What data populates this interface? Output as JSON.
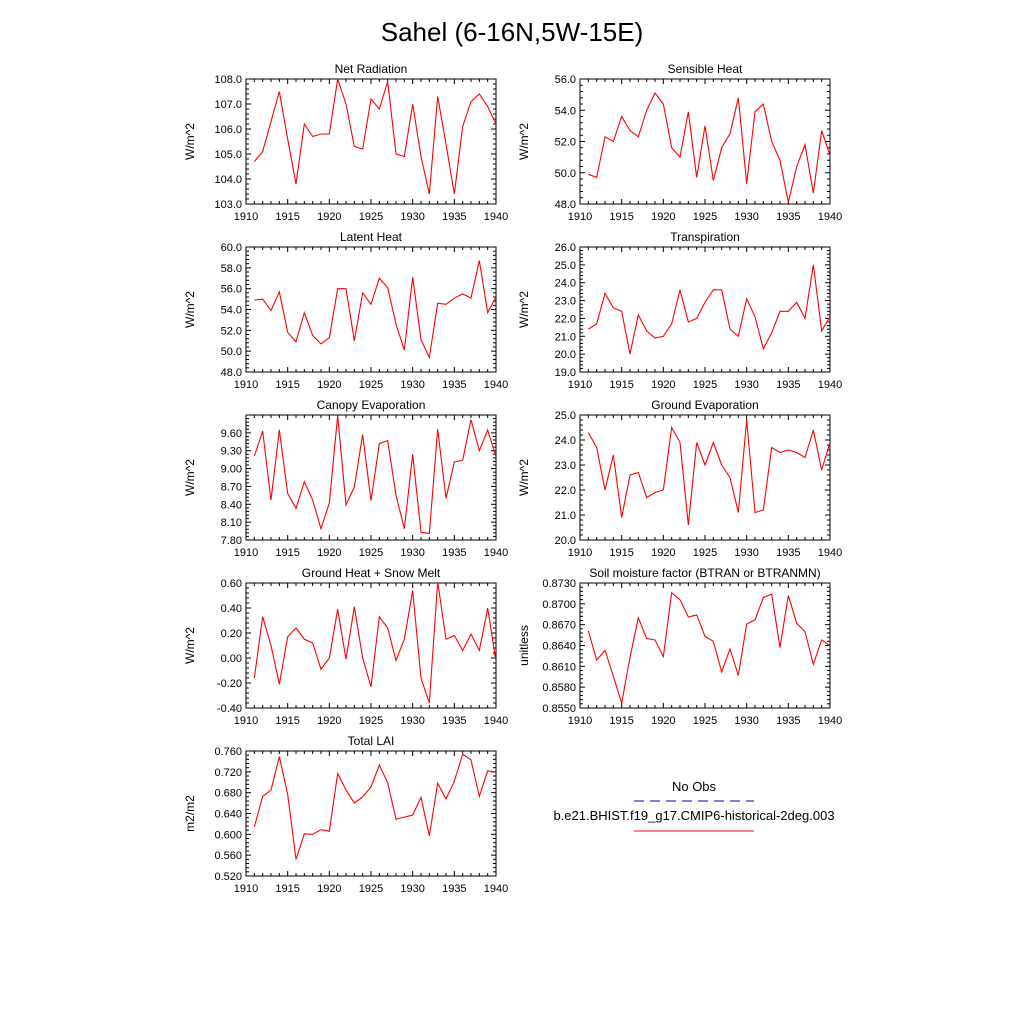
{
  "figure": {
    "title": "Sahel (6-16N,5W-15E)",
    "line_color": "#ff0000",
    "obs_color": "#0000aa",
    "legend": {
      "obs_label": "No Obs",
      "model_label": "b.e21.BHIST.f19_g17.CMIP6-historical-2deg.003"
    }
  },
  "chart_data": [
    {
      "type": "line",
      "title": "Net Radiation",
      "xlabel": "",
      "ylabel": "W/m^2",
      "xlim": [
        1910,
        1940
      ],
      "ylim": [
        103.0,
        108.0
      ],
      "x_ticks": [
        1910,
        1915,
        1920,
        1925,
        1930,
        1935,
        1940
      ],
      "y_ticks": [
        103.0,
        104.0,
        105.0,
        106.0,
        107.0,
        108.0
      ],
      "y_tick_labels": [
        "103.0",
        "104.0",
        "105.0",
        "106.0",
        "107.0",
        "108.0"
      ],
      "series": [
        {
          "x": [
            1911,
            1912,
            1913,
            1914,
            1915,
            1916,
            1917,
            1918,
            1919,
            1920,
            1921,
            1922,
            1923,
            1924,
            1925,
            1926,
            1927,
            1928,
            1929,
            1930,
            1931,
            1932,
            1933,
            1934,
            1935,
            1936,
            1937,
            1938,
            1939,
            1940
          ],
          "values": [
            104.7,
            105.1,
            106.3,
            107.5,
            105.6,
            103.8,
            106.2,
            105.7,
            105.8,
            105.8,
            108.0,
            107.0,
            105.3,
            105.2,
            107.2,
            106.8,
            107.9,
            105.0,
            104.9,
            107.0,
            104.9,
            103.4,
            107.3,
            105.4,
            103.4,
            106.1,
            107.1,
            107.4,
            106.9,
            106.2
          ]
        }
      ]
    },
    {
      "type": "line",
      "title": "Sensible Heat",
      "xlabel": "",
      "ylabel": "W/m^2",
      "xlim": [
        1910,
        1940
      ],
      "ylim": [
        48.0,
        56.0
      ],
      "x_ticks": [
        1910,
        1915,
        1920,
        1925,
        1930,
        1935,
        1940
      ],
      "y_ticks": [
        48.0,
        50.0,
        52.0,
        54.0,
        56.0
      ],
      "y_tick_labels": [
        "48.0",
        "50.0",
        "52.0",
        "54.0",
        "56.0"
      ],
      "series": [
        {
          "x": [
            1911,
            1912,
            1913,
            1914,
            1915,
            1916,
            1917,
            1918,
            1919,
            1920,
            1921,
            1922,
            1923,
            1924,
            1925,
            1926,
            1927,
            1928,
            1929,
            1930,
            1931,
            1932,
            1933,
            1934,
            1935,
            1936,
            1937,
            1938,
            1939,
            1940
          ],
          "values": [
            49.9,
            49.7,
            52.3,
            52.0,
            53.6,
            52.7,
            52.3,
            54.0,
            55.1,
            54.4,
            51.6,
            51.0,
            53.9,
            49.7,
            53.0,
            49.5,
            51.6,
            52.5,
            54.8,
            49.3,
            53.9,
            54.4,
            52.0,
            50.8,
            48.1,
            50.4,
            51.8,
            48.7,
            52.7,
            51.1
          ]
        }
      ]
    },
    {
      "type": "line",
      "title": "Latent Heat",
      "xlabel": "",
      "ylabel": "W/m^2",
      "xlim": [
        1910,
        1940
      ],
      "ylim": [
        48.0,
        60.0
      ],
      "x_ticks": [
        1910,
        1915,
        1920,
        1925,
        1930,
        1935,
        1940
      ],
      "y_ticks": [
        48.0,
        50.0,
        52.0,
        54.0,
        56.0,
        58.0,
        60.0
      ],
      "y_tick_labels": [
        "48.0",
        "50.0",
        "52.0",
        "54.0",
        "56.0",
        "58.0",
        "60.0"
      ],
      "series": [
        {
          "x": [
            1911,
            1912,
            1913,
            1914,
            1915,
            1916,
            1917,
            1918,
            1919,
            1920,
            1921,
            1922,
            1923,
            1924,
            1925,
            1926,
            1927,
            1928,
            1929,
            1930,
            1931,
            1932,
            1933,
            1934,
            1935,
            1936,
            1937,
            1938,
            1939,
            1940
          ],
          "values": [
            54.9,
            55.0,
            53.9,
            55.7,
            51.8,
            50.9,
            53.7,
            51.5,
            50.7,
            51.3,
            56.0,
            56.0,
            51.0,
            55.6,
            54.5,
            57.0,
            56.1,
            52.6,
            50.1,
            57.1,
            51.1,
            49.4,
            54.6,
            54.5,
            55.1,
            55.5,
            55.1,
            58.7,
            53.7,
            55.2
          ]
        }
      ]
    },
    {
      "type": "line",
      "title": "Transpiration",
      "xlabel": "",
      "ylabel": "W/m^2",
      "xlim": [
        1910,
        1940
      ],
      "ylim": [
        19.0,
        26.0
      ],
      "x_ticks": [
        1910,
        1915,
        1920,
        1925,
        1930,
        1935,
        1940
      ],
      "y_ticks": [
        19.0,
        20.0,
        21.0,
        22.0,
        23.0,
        24.0,
        25.0,
        26.0
      ],
      "y_tick_labels": [
        "19.0",
        "20.0",
        "21.0",
        "22.0",
        "23.0",
        "24.0",
        "25.0",
        "26.0"
      ],
      "series": [
        {
          "x": [
            1911,
            1912,
            1913,
            1914,
            1915,
            1916,
            1917,
            1918,
            1919,
            1920,
            1921,
            1922,
            1923,
            1924,
            1925,
            1926,
            1927,
            1928,
            1929,
            1930,
            1931,
            1932,
            1933,
            1934,
            1935,
            1936,
            1937,
            1938,
            1939,
            1940
          ],
          "values": [
            21.4,
            21.7,
            23.4,
            22.6,
            22.4,
            20.0,
            22.2,
            21.3,
            20.9,
            21.0,
            21.7,
            23.6,
            21.8,
            22.0,
            22.9,
            23.6,
            23.6,
            21.4,
            21.0,
            23.1,
            22.1,
            20.3,
            21.2,
            22.4,
            22.4,
            22.9,
            22.0,
            25.0,
            21.3,
            22.1
          ]
        }
      ]
    },
    {
      "type": "line",
      "title": "Canopy Evaporation",
      "xlabel": "",
      "ylabel": "W/m^2",
      "xlim": [
        1910,
        1940
      ],
      "ylim": [
        7.8,
        9.9
      ],
      "x_ticks": [
        1910,
        1915,
        1920,
        1925,
        1930,
        1935,
        1940
      ],
      "y_ticks": [
        7.8,
        8.1,
        8.4,
        8.7,
        9.0,
        9.3,
        9.6
      ],
      "y_tick_labels": [
        "7.80",
        "8.10",
        "8.40",
        "8.70",
        "9.00",
        "9.30",
        "9.60"
      ],
      "series": [
        {
          "x": [
            1911,
            1912,
            1913,
            1914,
            1915,
            1916,
            1917,
            1918,
            1919,
            1920,
            1921,
            1922,
            1923,
            1924,
            1925,
            1926,
            1927,
            1928,
            1929,
            1930,
            1931,
            1932,
            1933,
            1934,
            1935,
            1936,
            1937,
            1938,
            1939,
            1940
          ],
          "values": [
            9.21,
            9.63,
            8.47,
            9.65,
            8.58,
            8.33,
            8.78,
            8.47,
            7.99,
            8.42,
            9.89,
            8.39,
            8.69,
            9.57,
            8.46,
            9.42,
            9.47,
            8.55,
            7.99,
            9.24,
            7.93,
            7.91,
            9.66,
            8.5,
            9.11,
            9.14,
            9.82,
            9.3,
            9.65,
            9.2
          ]
        }
      ]
    },
    {
      "type": "line",
      "title": "Ground Evaporation",
      "xlabel": "",
      "ylabel": "W/m^2",
      "xlim": [
        1910,
        1940
      ],
      "ylim": [
        20.0,
        25.0
      ],
      "x_ticks": [
        1910,
        1915,
        1920,
        1925,
        1930,
        1935,
        1940
      ],
      "y_ticks": [
        20.0,
        21.0,
        22.0,
        23.0,
        24.0,
        25.0
      ],
      "y_tick_labels": [
        "20.0",
        "21.0",
        "22.0",
        "23.0",
        "24.0",
        "25.0"
      ],
      "series": [
        {
          "x": [
            1911,
            1912,
            1913,
            1914,
            1915,
            1916,
            1917,
            1918,
            1919,
            1920,
            1921,
            1922,
            1923,
            1924,
            1925,
            1926,
            1927,
            1928,
            1929,
            1930,
            1931,
            1932,
            1933,
            1934,
            1935,
            1936,
            1937,
            1938,
            1939,
            1940
          ],
          "values": [
            24.3,
            23.7,
            22.0,
            23.4,
            20.9,
            22.6,
            22.7,
            21.7,
            21.9,
            22.0,
            24.5,
            23.9,
            20.6,
            23.9,
            23.0,
            23.9,
            23.0,
            22.5,
            21.1,
            24.8,
            21.1,
            21.2,
            23.7,
            23.5,
            23.6,
            23.5,
            23.3,
            24.4,
            22.8,
            23.9
          ]
        }
      ]
    },
    {
      "type": "line",
      "title": "Ground Heat + Snow Melt",
      "xlabel": "",
      "ylabel": "W/m^2",
      "xlim": [
        1910,
        1940
      ],
      "ylim": [
        -0.4,
        0.6
      ],
      "x_ticks": [
        1910,
        1915,
        1920,
        1925,
        1930,
        1935,
        1940
      ],
      "y_ticks": [
        -0.4,
        -0.2,
        0.0,
        0.2,
        0.4,
        0.6
      ],
      "y_tick_labels": [
        "-0.40",
        "-0.20",
        "0.00",
        "0.20",
        "0.40",
        "0.60"
      ],
      "series": [
        {
          "x": [
            1911,
            1912,
            1913,
            1914,
            1915,
            1916,
            1917,
            1918,
            1919,
            1920,
            1921,
            1922,
            1923,
            1924,
            1925,
            1926,
            1927,
            1928,
            1929,
            1930,
            1931,
            1932,
            1933,
            1934,
            1935,
            1936,
            1937,
            1938,
            1939,
            1940
          ],
          "values": [
            -0.16,
            0.33,
            0.1,
            -0.21,
            0.17,
            0.24,
            0.15,
            0.12,
            -0.09,
            0.0,
            0.39,
            -0.01,
            0.41,
            0.0,
            -0.23,
            0.33,
            0.24,
            -0.02,
            0.15,
            0.54,
            -0.16,
            -0.36,
            0.61,
            0.15,
            0.18,
            0.06,
            0.19,
            0.06,
            0.4,
            -0.03
          ]
        }
      ]
    },
    {
      "type": "line",
      "title": "Soil moisture factor (BTRAN or BTRANMN)",
      "xlabel": "",
      "ylabel": "unitless",
      "xlim": [
        1910,
        1940
      ],
      "ylim": [
        0.855,
        0.873
      ],
      "x_ticks": [
        1910,
        1915,
        1920,
        1925,
        1930,
        1935,
        1940
      ],
      "y_ticks": [
        0.855,
        0.858,
        0.861,
        0.864,
        0.867,
        0.87,
        0.873
      ],
      "y_tick_labels": [
        "0.8550",
        "0.8580",
        "0.8610",
        "0.8640",
        "0.8670",
        "0.8700",
        "0.8730"
      ],
      "series": [
        {
          "x": [
            1911,
            1912,
            1913,
            1914,
            1915,
            1916,
            1917,
            1918,
            1919,
            1920,
            1921,
            1922,
            1923,
            1924,
            1925,
            1926,
            1927,
            1928,
            1929,
            1930,
            1931,
            1932,
            1933,
            1934,
            1935,
            1936,
            1937,
            1938,
            1939,
            1940
          ],
          "values": [
            0.8661,
            0.8619,
            0.8633,
            0.8596,
            0.8557,
            0.8623,
            0.868,
            0.865,
            0.8648,
            0.8624,
            0.8716,
            0.8706,
            0.8681,
            0.8684,
            0.8653,
            0.8646,
            0.8602,
            0.8635,
            0.8597,
            0.8671,
            0.8677,
            0.8709,
            0.8714,
            0.8637,
            0.8712,
            0.8672,
            0.866,
            0.8613,
            0.8648,
            0.864
          ]
        }
      ]
    },
    {
      "type": "line",
      "title": "Total LAI",
      "xlabel": "",
      "ylabel": "m2/m2",
      "xlim": [
        1910,
        1940
      ],
      "ylim": [
        0.52,
        0.76
      ],
      "x_ticks": [
        1910,
        1915,
        1920,
        1925,
        1930,
        1935,
        1940
      ],
      "y_ticks": [
        0.52,
        0.56,
        0.6,
        0.64,
        0.68,
        0.72,
        0.76
      ],
      "y_tick_labels": [
        "0.520",
        "0.560",
        "0.600",
        "0.640",
        "0.680",
        "0.720",
        "0.760"
      ],
      "series": [
        {
          "x": [
            1911,
            1912,
            1913,
            1914,
            1915,
            1916,
            1917,
            1918,
            1919,
            1920,
            1921,
            1922,
            1923,
            1924,
            1925,
            1926,
            1927,
            1928,
            1929,
            1930,
            1931,
            1932,
            1933,
            1934,
            1935,
            1936,
            1937,
            1938,
            1939,
            1940
          ],
          "values": [
            0.614,
            0.673,
            0.685,
            0.749,
            0.677,
            0.552,
            0.601,
            0.6,
            0.609,
            0.606,
            0.717,
            0.685,
            0.66,
            0.672,
            0.691,
            0.733,
            0.699,
            0.629,
            0.633,
            0.637,
            0.671,
            0.597,
            0.698,
            0.668,
            0.702,
            0.754,
            0.743,
            0.673,
            0.722,
            0.719
          ]
        }
      ]
    }
  ]
}
